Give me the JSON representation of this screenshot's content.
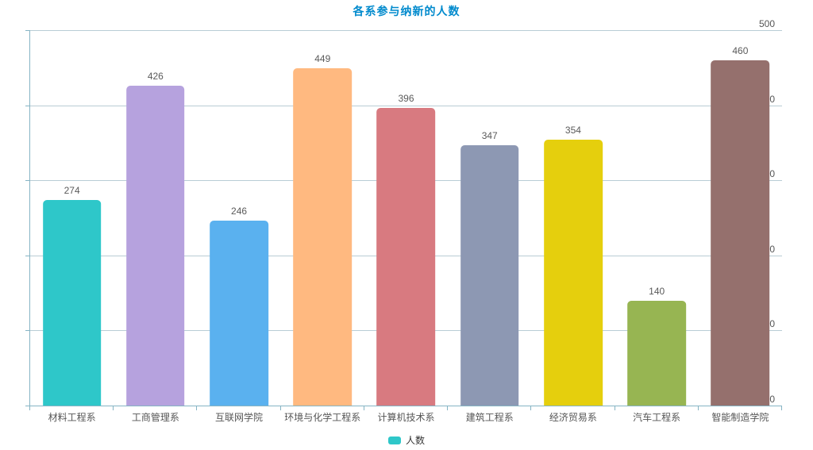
{
  "title": "各系参与纳新的人数",
  "legend": {
    "items": [
      {
        "label": "人数",
        "color": "#2ec7c9"
      }
    ],
    "position": "bottom-center"
  },
  "chart_data": {
    "type": "bar",
    "title": "各系参与纳新的人数",
    "categories": [
      "材料工程系",
      "工商管理系",
      "互联网学院",
      "环境与化学工程系",
      "计算机技术系",
      "建筑工程系",
      "经济贸易系",
      "汽车工程系",
      "智能制造学院"
    ],
    "series": [
      {
        "name": "人数",
        "values": [
          274,
          426,
          246,
          449,
          396,
          347,
          354,
          140,
          460
        ]
      }
    ],
    "bar_colors": [
      "#2ec7c9",
      "#b6a2de",
      "#5ab1ef",
      "#ffb980",
      "#d87a80",
      "#8d98b3",
      "#e5cf0d",
      "#97b552",
      "#95706d"
    ],
    "xlabel": "",
    "ylabel": "",
    "ylim": [
      0,
      500
    ],
    "yticks": [
      0,
      100,
      200,
      300,
      400,
      500
    ],
    "grid": true,
    "value_labels": true,
    "legend_position": "bottom"
  },
  "colors": {
    "title": "#008acd",
    "axis_line": "#86b4c4",
    "grid_line": "#b9cdd5",
    "tick_label": "#555555",
    "value_label": "#5a5a5a",
    "category_label": "#555555",
    "background": "#ffffff"
  }
}
